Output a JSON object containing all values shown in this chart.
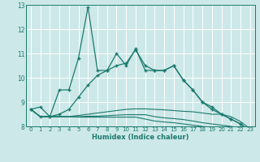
{
  "xlabel": "Humidex (Indice chaleur)",
  "x": [
    0,
    1,
    2,
    3,
    4,
    5,
    6,
    7,
    8,
    9,
    10,
    11,
    12,
    13,
    14,
    15,
    16,
    17,
    18,
    19,
    20,
    21,
    22,
    23
  ],
  "line1": [
    8.7,
    8.8,
    8.4,
    9.5,
    9.5,
    10.8,
    12.9,
    10.3,
    10.3,
    11.0,
    10.5,
    11.2,
    10.3,
    10.3,
    10.3,
    10.5,
    9.9,
    9.5,
    9.0,
    8.8,
    8.5,
    8.3,
    8.1,
    7.8
  ],
  "line2": [
    8.7,
    8.4,
    8.4,
    8.5,
    8.7,
    9.2,
    9.7,
    10.1,
    10.3,
    10.5,
    10.6,
    11.15,
    10.5,
    10.3,
    10.3,
    10.5,
    9.9,
    9.5,
    9.0,
    8.7,
    8.5,
    8.3,
    8.1,
    7.8
  ],
  "line3": [
    8.7,
    8.4,
    8.4,
    8.4,
    8.4,
    8.45,
    8.5,
    8.55,
    8.6,
    8.65,
    8.7,
    8.72,
    8.72,
    8.7,
    8.68,
    8.65,
    8.62,
    8.6,
    8.55,
    8.5,
    8.5,
    8.4,
    8.2,
    7.9
  ],
  "line4": [
    8.7,
    8.4,
    8.4,
    8.4,
    8.4,
    8.4,
    8.42,
    8.42,
    8.44,
    8.46,
    8.48,
    8.48,
    8.48,
    8.4,
    8.35,
    8.32,
    8.28,
    8.22,
    8.15,
    8.1,
    8.05,
    8.0,
    7.9,
    7.8
  ],
  "line5": [
    8.7,
    8.4,
    8.4,
    8.4,
    8.4,
    8.38,
    8.38,
    8.38,
    8.38,
    8.38,
    8.38,
    8.38,
    8.3,
    8.22,
    8.18,
    8.15,
    8.1,
    8.05,
    8.0,
    7.95,
    7.9,
    7.88,
    7.85,
    7.8
  ],
  "line_color": "#1a7a6e",
  "bg_color": "#cde8e8",
  "grid_color": "#ffffff",
  "ylim": [
    8,
    13
  ],
  "yticks": [
    8,
    9,
    10,
    11,
    12,
    13
  ],
  "xticks": [
    0,
    1,
    2,
    3,
    4,
    5,
    6,
    7,
    8,
    9,
    10,
    11,
    12,
    13,
    14,
    15,
    16,
    17,
    18,
    19,
    20,
    21,
    22,
    23
  ]
}
